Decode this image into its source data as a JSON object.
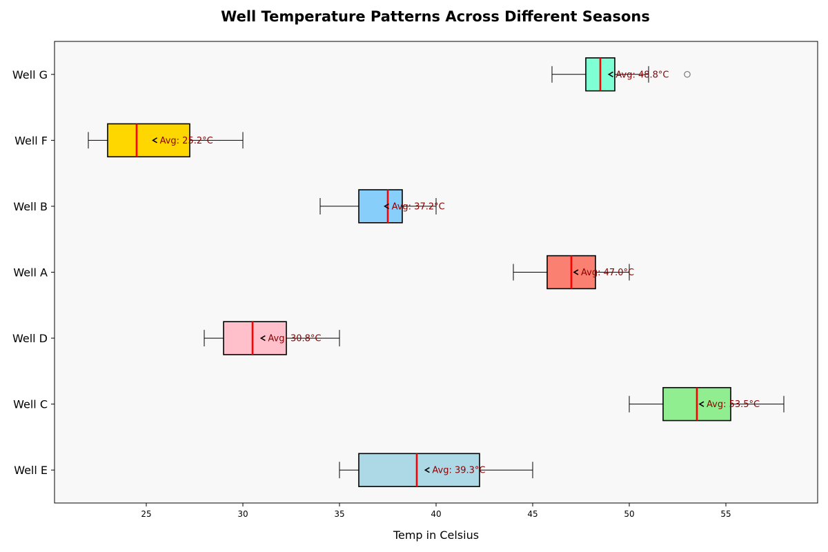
{
  "chart_data": {
    "type": "boxplot",
    "orientation": "horizontal",
    "title": "Well Temperature Patterns Across Different Seasons",
    "xlabel": "Temp in Celsius",
    "ylabel": "",
    "xlim": [
      20.25,
      59.75
    ],
    "xticks": [
      25,
      30,
      35,
      40,
      45,
      50,
      55
    ],
    "grid": false,
    "background": "#f8f8f8",
    "median_color": "#ff0000",
    "annotation_color": "#8b0000",
    "categories": [
      "Well E",
      "Well C",
      "Well D",
      "Well A",
      "Well B",
      "Well F",
      "Well G"
    ],
    "boxes": [
      {
        "name": "Well E",
        "color": "#add8e6",
        "whisker_low": 35,
        "q1": 36,
        "median": 39,
        "q3": 42.25,
        "whisker_high": 45,
        "mean": 39.3,
        "mean_label": "Avg: 39.3°C",
        "outliers": []
      },
      {
        "name": "Well C",
        "color": "#90ee90",
        "whisker_low": 50,
        "q1": 51.75,
        "median": 53.5,
        "q3": 55.25,
        "whisker_high": 58,
        "mean": 53.5,
        "mean_label": "Avg: 53.5°C",
        "outliers": []
      },
      {
        "name": "Well D",
        "color": "#ffc0cb",
        "whisker_low": 28,
        "q1": 29,
        "median": 30.5,
        "q3": 32.25,
        "whisker_high": 35,
        "mean": 30.8,
        "mean_label": "Avg: 30.8°C",
        "outliers": []
      },
      {
        "name": "Well A",
        "color": "#fa8072",
        "whisker_low": 44,
        "q1": 45.75,
        "median": 47,
        "q3": 48.25,
        "whisker_high": 50,
        "mean": 47.0,
        "mean_label": "Avg: 47.0°C",
        "outliers": []
      },
      {
        "name": "Well B",
        "color": "#87cefa",
        "whisker_low": 34,
        "q1": 36,
        "median": 37.5,
        "q3": 38.25,
        "whisker_high": 40,
        "mean": 37.2,
        "mean_label": "Avg: 37.2°C",
        "outliers": []
      },
      {
        "name": "Well F",
        "color": "#ffd700",
        "whisker_low": 22,
        "q1": 23,
        "median": 24.5,
        "q3": 27.25,
        "whisker_high": 30,
        "mean": 25.2,
        "mean_label": "Avg: 25.2°C",
        "outliers": []
      },
      {
        "name": "Well G",
        "color": "#7fffd4",
        "whisker_low": 46,
        "q1": 47.75,
        "median": 48.5,
        "q3": 49.25,
        "whisker_high": 51,
        "mean": 48.8,
        "mean_label": "Avg: 48.8°C",
        "outliers": [
          53
        ]
      }
    ]
  }
}
